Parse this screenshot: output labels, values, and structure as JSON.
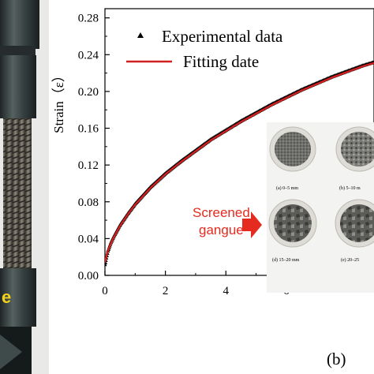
{
  "photo": {
    "caption_fragment": "e",
    "colors": {
      "metal": "#3b4648",
      "thread": "#6d6a60",
      "caption": "#f2d21a"
    }
  },
  "panel_label": "(b)",
  "chart_data": {
    "type": "line",
    "title": "",
    "xlabel": "",
    "ylabel": "Strain（ε）",
    "xlim": [
      0,
      8.9
    ],
    "ylim": [
      0,
      0.29
    ],
    "x_ticks": [
      0,
      2,
      4,
      6
    ],
    "x_tick_labels": [
      "0",
      "2",
      "4",
      "6"
    ],
    "y_ticks": [
      0.0,
      0.04,
      0.08,
      0.12,
      0.16,
      0.2,
      0.24,
      0.28
    ],
    "y_tick_labels": [
      "0.00",
      "0.04",
      "0.08",
      "0.12",
      "0.16",
      "0.20",
      "0.24",
      "0.28"
    ],
    "grid": false,
    "legend_position": "top-left",
    "series": [
      {
        "name": "Experimental data",
        "marker": "triangle",
        "color": "#000000",
        "x": [
          0,
          0.05,
          0.1,
          0.2,
          0.3,
          0.5,
          0.75,
          1.0,
          1.5,
          2.0,
          2.5,
          3.0,
          3.5,
          4.0,
          4.5,
          5.0,
          5.5,
          6.0,
          6.5,
          7.0,
          7.5,
          8.0,
          8.5,
          8.9
        ],
        "values": [
          0.012,
          0.02,
          0.027,
          0.036,
          0.043,
          0.055,
          0.067,
          0.078,
          0.096,
          0.111,
          0.124,
          0.136,
          0.148,
          0.158,
          0.168,
          0.177,
          0.186,
          0.194,
          0.202,
          0.209,
          0.216,
          0.222,
          0.228,
          0.232
        ]
      },
      {
        "name": "Fitting date",
        "marker": "none",
        "color": "#d21f1f",
        "x": [
          0,
          0.05,
          0.1,
          0.2,
          0.3,
          0.5,
          0.75,
          1.0,
          1.5,
          2.0,
          2.5,
          3.0,
          3.5,
          4.0,
          4.5,
          5.0,
          5.5,
          6.0,
          6.5,
          7.0,
          7.5,
          8.0,
          8.5,
          8.9
        ],
        "values": [
          0.014,
          0.021,
          0.027,
          0.035,
          0.042,
          0.054,
          0.066,
          0.077,
          0.095,
          0.11,
          0.123,
          0.135,
          0.147,
          0.157,
          0.167,
          0.176,
          0.185,
          0.193,
          0.201,
          0.208,
          0.215,
          0.221,
          0.227,
          0.231
        ]
      }
    ]
  },
  "inset": {
    "label": "Screened\ngangue",
    "label_line1": "Screened",
    "label_line2": "gangue",
    "arrow_color": "#e52a1f",
    "captions": [
      "(a)  0–5 mm",
      "(b)  5–10 m",
      "(d)  15–20 mm",
      "(e)  20–25"
    ]
  }
}
